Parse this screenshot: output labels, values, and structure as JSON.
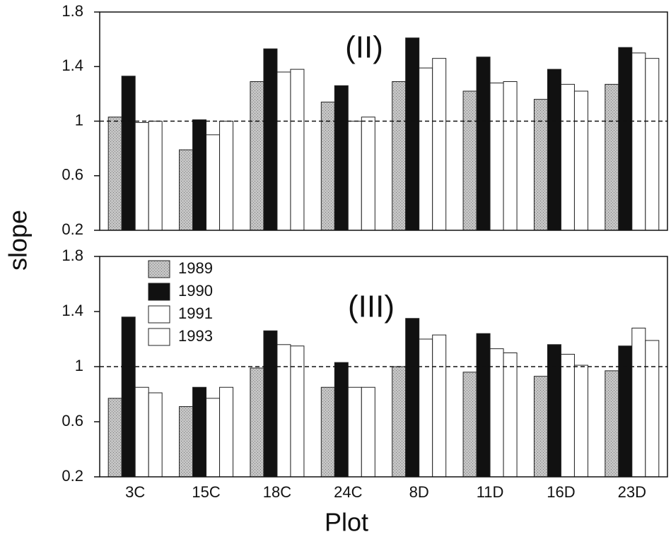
{
  "chart_data": [
    {
      "type": "bar",
      "title": "(II)",
      "ylabel": "slope",
      "series": [
        {
          "color": "#b4b4b4",
          "values": [
            1.03,
            0.79,
            1.29,
            1.14,
            1.29,
            1.22,
            1.16,
            1.27
          ]
        },
        {
          "color": "#111111",
          "values": [
            1.33,
            1.01,
            1.53,
            1.26,
            1.61,
            1.47,
            1.38,
            1.54
          ]
        },
        {
          "color": "#ffffff",
          "values": [
            0.99,
            0.9,
            1.36,
            1.0,
            1.39,
            1.28,
            1.27,
            1.5
          ]
        },
        {
          "color": "#ffffff",
          "values": [
            1.0,
            1.0,
            1.38,
            1.03,
            1.46,
            1.29,
            1.22,
            1.46
          ]
        }
      ],
      "ylim": [
        0.2,
        1.8
      ],
      "yticks": [
        0.2,
        0.6,
        1,
        1.4,
        1.8
      ],
      "reference_line": 1
    },
    {
      "type": "bar",
      "title": "(III)",
      "xlabel": "Plot",
      "categories": [
        "3C",
        "15C",
        "18C",
        "24C",
        "8D",
        "11D",
        "16D",
        "23D"
      ],
      "series": [
        {
          "name": "1989",
          "color": "#b4b4b4",
          "values": [
            0.77,
            0.71,
            0.99,
            0.85,
            1.0,
            0.96,
            0.93,
            0.97
          ]
        },
        {
          "name": "1990",
          "color": "#111111",
          "values": [
            1.36,
            0.85,
            1.26,
            1.03,
            1.35,
            1.24,
            1.16,
            1.15
          ]
        },
        {
          "name": "1991",
          "color": "#ffffff",
          "values": [
            0.85,
            0.77,
            1.16,
            0.85,
            1.2,
            1.13,
            1.09,
            1.28
          ]
        },
        {
          "name": "1993",
          "color": "#ffffff",
          "values": [
            0.81,
            0.85,
            1.15,
            0.85,
            1.23,
            1.1,
            1.01,
            1.19
          ]
        }
      ],
      "ylim": [
        0.2,
        1.8
      ],
      "yticks": [
        0.2,
        0.6,
        1,
        1.4,
        1.8
      ],
      "reference_line": 1,
      "legend": "upper left"
    }
  ]
}
